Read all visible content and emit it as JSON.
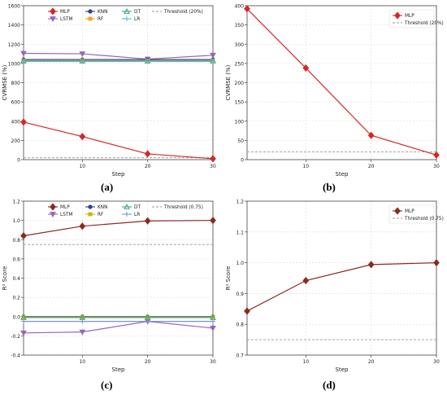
{
  "chart_data": [
    {
      "panel_label": "(a)",
      "type": "line",
      "xlabel": "Step",
      "ylabel": "CVRMSE (%)",
      "x": [
        1,
        10,
        20,
        30
      ],
      "xticks": [
        10,
        20,
        30
      ],
      "xlim": [
        1,
        30
      ],
      "ylim": [
        0,
        1600
      ],
      "yticks": [
        0,
        200,
        400,
        600,
        800,
        1000,
        1200,
        1400,
        1600
      ],
      "grid": true,
      "legend": {
        "placement": "top",
        "columns": 4
      },
      "series": [
        {
          "name": "MLP",
          "color": "#d62728",
          "marker": "diamond",
          "values": [
            390,
            240,
            60,
            10
          ]
        },
        {
          "name": "LSTM",
          "color": "#9467bd",
          "marker": "triangle-down",
          "values": [
            1105,
            1100,
            1045,
            1085
          ]
        },
        {
          "name": "KNN",
          "color": "#2d3e8f",
          "marker": "circle",
          "values": [
            1040,
            1040,
            1040,
            1040
          ]
        },
        {
          "name": "RF",
          "color": "#ff9f1c",
          "marker": "square",
          "values": [
            1030,
            1030,
            1030,
            1030
          ]
        },
        {
          "name": "DT",
          "color": "#3aa876",
          "marker": "triangle-up",
          "values": [
            1025,
            1025,
            1025,
            1025
          ]
        },
        {
          "name": "LR",
          "color": "#5ab4d6",
          "marker": "plus",
          "values": [
            1020,
            1020,
            1020,
            1020
          ]
        }
      ],
      "threshold": {
        "name": "Threshold (20%)",
        "value": 20,
        "color": "#999999"
      }
    },
    {
      "panel_label": "(b)",
      "type": "line",
      "xlabel": "Step",
      "ylabel": "CVRMSE (%)",
      "x": [
        1,
        10,
        20,
        30
      ],
      "xticks": [
        10,
        20,
        30
      ],
      "xlim": [
        1,
        30
      ],
      "ylim": [
        0,
        400
      ],
      "yticks": [
        0,
        50,
        100,
        150,
        200,
        250,
        300,
        350,
        400
      ],
      "grid": true,
      "legend": {
        "placement": "top-right",
        "columns": 1
      },
      "series": [
        {
          "name": "MLP",
          "color": "#d62728",
          "marker": "diamond",
          "values": [
            392,
            238,
            63,
            12
          ]
        }
      ],
      "threshold": {
        "name": "Threshold (20%)",
        "value": 20,
        "color": "#999999"
      }
    },
    {
      "panel_label": "(c)",
      "type": "line",
      "xlabel": "Step",
      "ylabel": "R² Score",
      "x": [
        1,
        10,
        20,
        30
      ],
      "xticks": [
        10,
        20,
        30
      ],
      "xlim": [
        1,
        30
      ],
      "ylim": [
        -0.4,
        1.2
      ],
      "yticks": [
        -0.4,
        -0.2,
        0.0,
        0.2,
        0.4,
        0.6,
        0.8,
        1.0,
        1.2
      ],
      "grid": true,
      "legend": {
        "placement": "top",
        "columns": 4
      },
      "series": [
        {
          "name": "MLP",
          "color": "#8b2b1e",
          "marker": "diamond",
          "values": [
            0.84,
            0.94,
            0.995,
            1.0
          ]
        },
        {
          "name": "LSTM",
          "color": "#9467bd",
          "marker": "triangle-down",
          "values": [
            -0.17,
            -0.16,
            -0.05,
            -0.12
          ]
        },
        {
          "name": "KNN",
          "color": "#2d3e8f",
          "marker": "circle",
          "values": [
            0.0,
            0.0,
            0.0,
            0.0
          ]
        },
        {
          "name": "RF",
          "color": "#c9b400",
          "marker": "square",
          "values": [
            -0.005,
            -0.005,
            -0.005,
            -0.005
          ]
        },
        {
          "name": "DT",
          "color": "#3aa876",
          "marker": "triangle-up",
          "values": [
            -0.01,
            -0.01,
            -0.01,
            -0.01
          ]
        },
        {
          "name": "LR",
          "color": "#7c8fe0",
          "marker": "plus",
          "values": [
            -0.05,
            -0.05,
            -0.05,
            -0.05
          ]
        }
      ],
      "threshold": {
        "name": "Threshold (0.75)",
        "value": 0.75,
        "color": "#999999"
      }
    },
    {
      "panel_label": "(d)",
      "type": "line",
      "xlabel": "Step",
      "ylabel": "R² Score",
      "x": [
        1,
        10,
        20,
        30
      ],
      "xticks": [
        10,
        20,
        30
      ],
      "xlim": [
        1,
        30
      ],
      "ylim": [
        0.7,
        1.2
      ],
      "yticks": [
        0.7,
        0.8,
        0.9,
        1.0,
        1.1,
        1.2
      ],
      "grid": true,
      "legend": {
        "placement": "top-right",
        "columns": 1
      },
      "series": [
        {
          "name": "MLP",
          "color": "#8b2b1e",
          "marker": "diamond",
          "values": [
            0.843,
            0.942,
            0.994,
            1.0
          ]
        }
      ],
      "threshold": {
        "name": "Threshold (0.75)",
        "value": 0.75,
        "color": "#999999"
      }
    }
  ]
}
